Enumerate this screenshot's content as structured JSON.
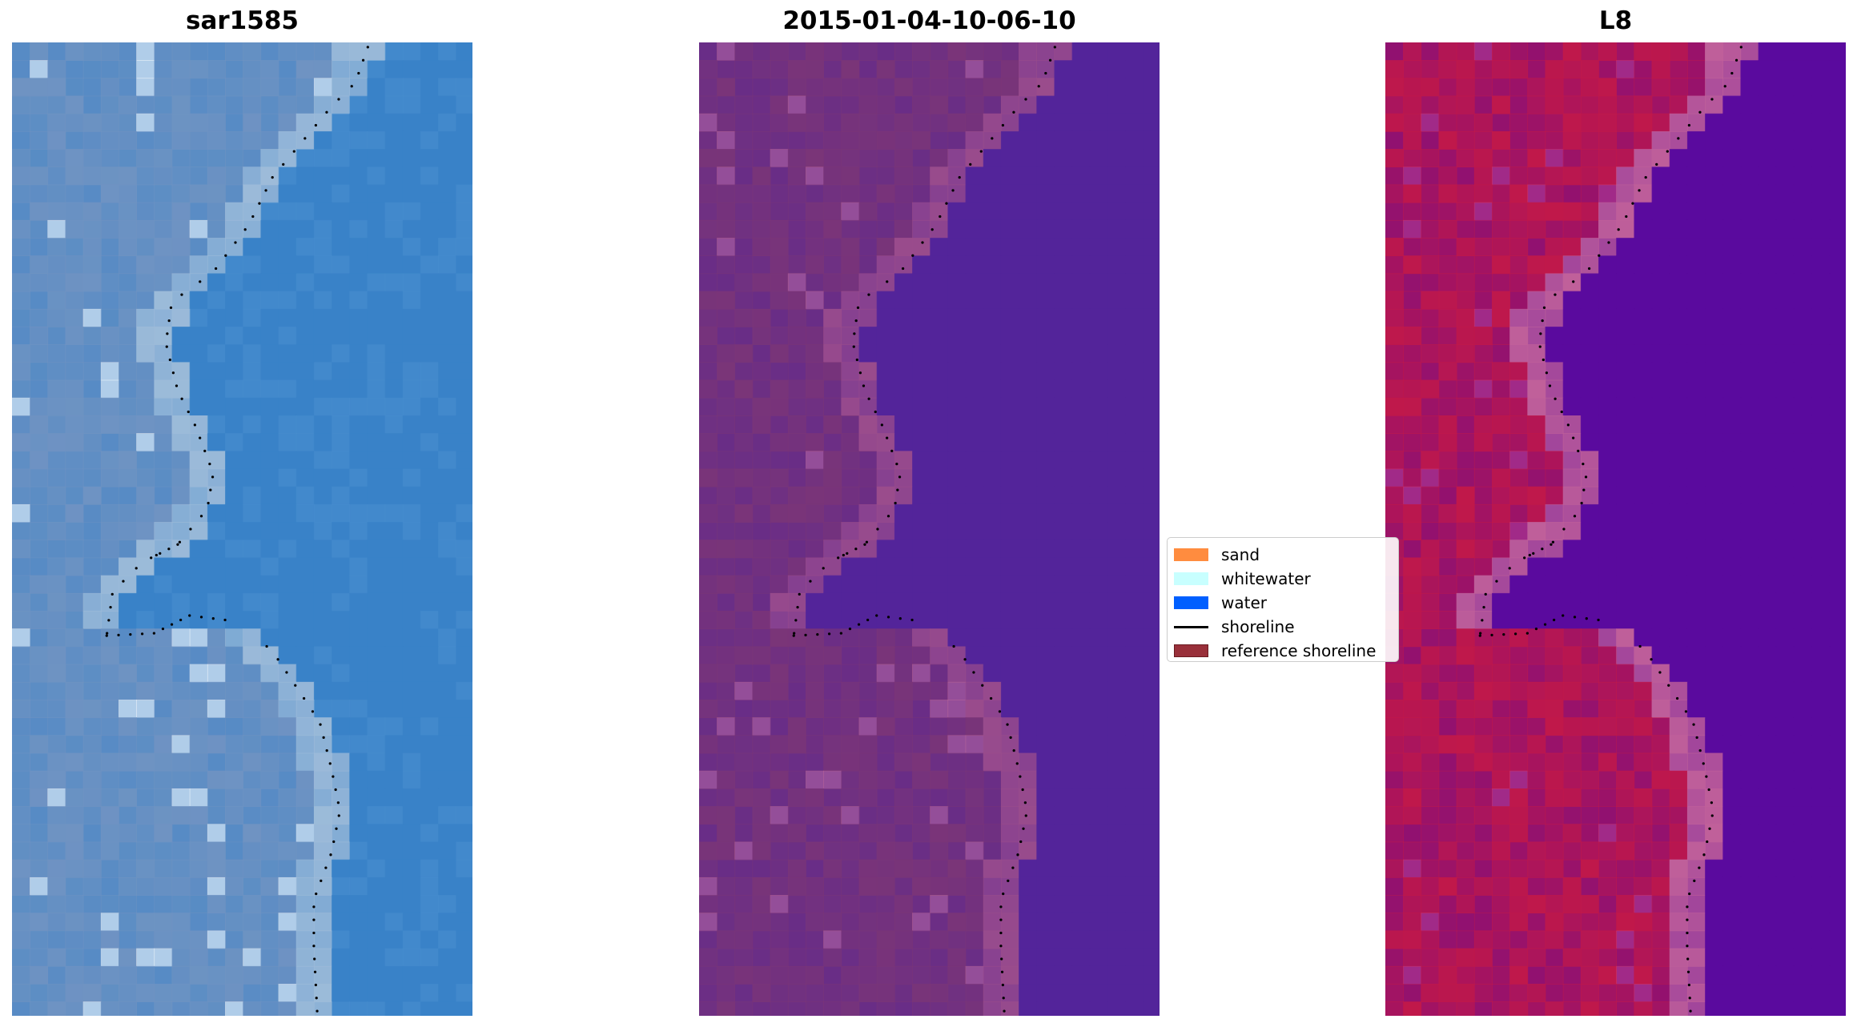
{
  "panels": [
    {
      "title": "sar1585",
      "land_color": "#6f93c2",
      "water_color": "#3a82c8",
      "edge_color": "#9dbbd9",
      "highlight": "#ffffff"
    },
    {
      "title": "2015-01-04-10-06-10",
      "land_color": "#7a3578",
      "water_color": "#54249a",
      "edge_color": "#9a4c8c",
      "highlight": "#c06a9a"
    },
    {
      "title": "L8",
      "land_color": "#c0184a",
      "water_color": "#5a0a9e",
      "edge_color": "#c0609a",
      "highlight": "#d0407a"
    }
  ],
  "legend": {
    "items": [
      {
        "label": "sand",
        "color": "#ff8c3f",
        "kind": "patch"
      },
      {
        "label": "whitewater",
        "color": "#c8ffff",
        "kind": "patch"
      },
      {
        "label": "water",
        "color": "#005fff",
        "kind": "patch"
      },
      {
        "label": "shoreline",
        "color": "#000000",
        "kind": "line"
      },
      {
        "label": "reference shoreline",
        "color": "#99303a",
        "kind": "patch"
      }
    ]
  }
}
